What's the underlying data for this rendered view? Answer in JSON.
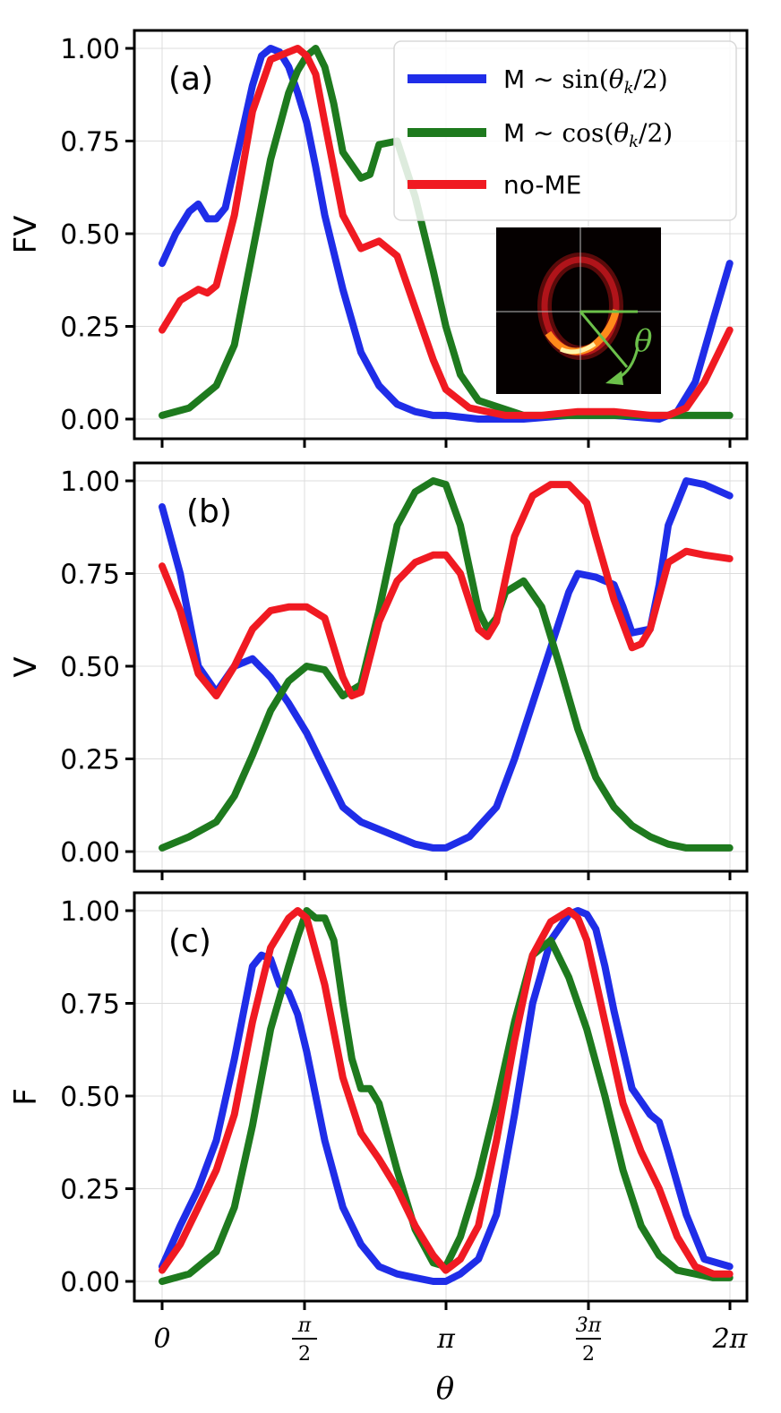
{
  "chart_data": [
    {
      "type": "line",
      "panel": "(a)",
      "ylabel": "FV",
      "xlabel": "",
      "ylim": [
        0,
        1
      ],
      "xlim": [
        0,
        6.2832
      ],
      "yticks": [
        "0.00",
        "0.25",
        "0.50",
        "0.75",
        "1.00"
      ],
      "grid": true,
      "legend": [
        "M ~ sin(θ_k/2)",
        "M ~ cos(θ_k/2)",
        "no-ME"
      ],
      "legend_position": "top-right",
      "inset": {
        "description": "ring intensity map",
        "theta_label": "θ"
      },
      "series": [
        {
          "name": "M ~ sin(θ_k/2)",
          "color": "#1f2de8",
          "x": [
            0,
            0.15,
            0.3,
            0.4,
            0.5,
            0.6,
            0.7,
            0.8,
            1.0,
            1.1,
            1.2,
            1.3,
            1.4,
            1.5,
            1.6,
            1.7,
            1.8,
            2.0,
            2.2,
            2.4,
            2.6,
            2.8,
            3.0,
            3.14,
            3.5,
            4.0,
            4.5,
            5.0,
            5.5,
            5.7,
            5.9,
            6.1,
            6.28
          ],
          "y": [
            0.42,
            0.5,
            0.56,
            0.58,
            0.54,
            0.54,
            0.57,
            0.68,
            0.9,
            0.98,
            1.0,
            0.99,
            0.95,
            0.88,
            0.8,
            0.68,
            0.55,
            0.35,
            0.18,
            0.09,
            0.04,
            0.02,
            0.01,
            0.01,
            0.0,
            0.0,
            0.01,
            0.01,
            0.0,
            0.02,
            0.1,
            0.27,
            0.42
          ]
        },
        {
          "name": "M ~ cos(θ_k/2)",
          "color": "#1e7a1e",
          "x": [
            0,
            0.3,
            0.6,
            0.8,
            1.0,
            1.2,
            1.4,
            1.5,
            1.6,
            1.7,
            1.8,
            1.9,
            2.0,
            2.2,
            2.3,
            2.4,
            2.6,
            2.8,
            3.0,
            3.14,
            3.3,
            3.5,
            4.0,
            4.5,
            5.0,
            5.5,
            6.0,
            6.28
          ],
          "y": [
            0.01,
            0.03,
            0.09,
            0.2,
            0.45,
            0.7,
            0.88,
            0.94,
            0.98,
            1.0,
            0.95,
            0.85,
            0.72,
            0.65,
            0.66,
            0.74,
            0.75,
            0.6,
            0.4,
            0.25,
            0.12,
            0.05,
            0.01,
            0.01,
            0.01,
            0.01,
            0.01,
            0.01
          ]
        },
        {
          "name": "no-ME",
          "color": "#f01a22",
          "x": [
            0,
            0.2,
            0.4,
            0.5,
            0.6,
            0.8,
            1.0,
            1.2,
            1.4,
            1.5,
            1.6,
            1.7,
            1.8,
            2.0,
            2.2,
            2.4,
            2.6,
            2.8,
            3.0,
            3.14,
            3.4,
            3.8,
            4.2,
            4.6,
            5.0,
            5.4,
            5.6,
            5.8,
            6.0,
            6.28
          ],
          "y": [
            0.24,
            0.32,
            0.35,
            0.34,
            0.36,
            0.55,
            0.83,
            0.97,
            0.99,
            1.0,
            0.98,
            0.93,
            0.8,
            0.55,
            0.46,
            0.48,
            0.44,
            0.3,
            0.16,
            0.08,
            0.03,
            0.01,
            0.01,
            0.02,
            0.02,
            0.01,
            0.01,
            0.03,
            0.1,
            0.24
          ]
        }
      ]
    },
    {
      "type": "line",
      "panel": "(b)",
      "ylabel": "V",
      "xlabel": "",
      "ylim": [
        0,
        1
      ],
      "xlim": [
        0,
        6.2832
      ],
      "yticks": [
        "0.00",
        "0.25",
        "0.50",
        "0.75",
        "1.00"
      ],
      "grid": true,
      "series": [
        {
          "name": "M ~ sin(θ_k/2)",
          "color": "#1f2de8",
          "x": [
            0,
            0.2,
            0.4,
            0.6,
            0.8,
            1.0,
            1.2,
            1.4,
            1.6,
            1.8,
            2.0,
            2.2,
            2.4,
            2.6,
            2.8,
            3.0,
            3.14,
            3.4,
            3.7,
            3.9,
            4.1,
            4.3,
            4.5,
            4.6,
            4.8,
            5.0,
            5.1,
            5.2,
            5.4,
            5.5,
            5.6,
            5.8,
            6.0,
            6.28
          ],
          "y": [
            0.93,
            0.75,
            0.5,
            0.43,
            0.5,
            0.52,
            0.47,
            0.4,
            0.32,
            0.22,
            0.12,
            0.08,
            0.06,
            0.04,
            0.02,
            0.01,
            0.01,
            0.04,
            0.12,
            0.25,
            0.4,
            0.55,
            0.7,
            0.75,
            0.74,
            0.72,
            0.66,
            0.59,
            0.6,
            0.72,
            0.88,
            1.0,
            0.99,
            0.96
          ]
        },
        {
          "name": "M ~ cos(θ_k/2)",
          "color": "#1e7a1e",
          "x": [
            0,
            0.3,
            0.6,
            0.8,
            1.0,
            1.2,
            1.4,
            1.6,
            1.8,
            2.0,
            2.2,
            2.4,
            2.6,
            2.8,
            3.0,
            3.14,
            3.3,
            3.5,
            3.6,
            3.7,
            3.8,
            4.0,
            4.2,
            4.4,
            4.6,
            4.8,
            5.0,
            5.2,
            5.4,
            5.6,
            5.8,
            6.0,
            6.28
          ],
          "y": [
            0.01,
            0.04,
            0.08,
            0.15,
            0.26,
            0.38,
            0.46,
            0.5,
            0.49,
            0.42,
            0.45,
            0.65,
            0.88,
            0.97,
            1.0,
            0.99,
            0.88,
            0.65,
            0.6,
            0.63,
            0.7,
            0.73,
            0.66,
            0.5,
            0.33,
            0.2,
            0.12,
            0.07,
            0.04,
            0.02,
            0.01,
            0.01,
            0.01
          ]
        },
        {
          "name": "no-ME",
          "color": "#f01a22",
          "x": [
            0,
            0.2,
            0.4,
            0.6,
            0.8,
            1.0,
            1.2,
            1.4,
            1.6,
            1.8,
            2.0,
            2.1,
            2.2,
            2.4,
            2.6,
            2.8,
            3.0,
            3.14,
            3.3,
            3.5,
            3.6,
            3.7,
            3.9,
            4.1,
            4.3,
            4.5,
            4.7,
            4.8,
            5.0,
            5.2,
            5.3,
            5.4,
            5.6,
            5.8,
            6.0,
            6.28
          ],
          "y": [
            0.77,
            0.65,
            0.48,
            0.42,
            0.5,
            0.6,
            0.65,
            0.66,
            0.66,
            0.63,
            0.47,
            0.42,
            0.43,
            0.62,
            0.73,
            0.78,
            0.8,
            0.8,
            0.75,
            0.6,
            0.58,
            0.62,
            0.85,
            0.96,
            0.99,
            0.99,
            0.94,
            0.85,
            0.68,
            0.55,
            0.56,
            0.6,
            0.78,
            0.81,
            0.8,
            0.79
          ]
        }
      ]
    },
    {
      "type": "line",
      "panel": "(c)",
      "ylabel": "F",
      "xlabel": "θ",
      "ylim": [
        0,
        1
      ],
      "xlim": [
        0,
        6.2832
      ],
      "yticks": [
        "0.00",
        "0.25",
        "0.50",
        "0.75",
        "1.00"
      ],
      "xticks": [
        {
          "value": 0,
          "label": "0"
        },
        {
          "value": 1.5708,
          "label": "π/2",
          "num": "π",
          "den": "2"
        },
        {
          "value": 3.1416,
          "label": "π"
        },
        {
          "value": 4.7124,
          "label": "3π/2",
          "num": "3π",
          "den": "2"
        },
        {
          "value": 6.2832,
          "label": "2π"
        }
      ],
      "grid": true,
      "series": [
        {
          "name": "M ~ sin(θ_k/2)",
          "color": "#1f2de8",
          "x": [
            0,
            0.2,
            0.4,
            0.6,
            0.8,
            1.0,
            1.1,
            1.2,
            1.3,
            1.4,
            1.5,
            1.6,
            1.8,
            2.0,
            2.2,
            2.4,
            2.6,
            2.8,
            3.0,
            3.14,
            3.3,
            3.5,
            3.7,
            3.9,
            4.1,
            4.3,
            4.5,
            4.6,
            4.7,
            4.8,
            4.9,
            5.0,
            5.2,
            5.4,
            5.5,
            5.6,
            5.8,
            6.0,
            6.28
          ],
          "y": [
            0.04,
            0.15,
            0.25,
            0.38,
            0.6,
            0.85,
            0.88,
            0.87,
            0.8,
            0.78,
            0.72,
            0.62,
            0.38,
            0.2,
            0.1,
            0.04,
            0.02,
            0.01,
            0.0,
            0.0,
            0.02,
            0.06,
            0.18,
            0.45,
            0.75,
            0.92,
            0.99,
            1.0,
            0.99,
            0.95,
            0.85,
            0.73,
            0.52,
            0.45,
            0.43,
            0.35,
            0.18,
            0.06,
            0.04
          ]
        },
        {
          "name": "M ~ cos(θ_k/2)",
          "color": "#1e7a1e",
          "x": [
            0,
            0.3,
            0.6,
            0.8,
            1.0,
            1.2,
            1.4,
            1.5,
            1.6,
            1.7,
            1.8,
            1.9,
            2.0,
            2.1,
            2.2,
            2.3,
            2.4,
            2.6,
            2.8,
            3.0,
            3.14,
            3.3,
            3.5,
            3.7,
            3.9,
            4.1,
            4.3,
            4.5,
            4.7,
            4.9,
            5.1,
            5.3,
            5.5,
            5.7,
            5.9,
            6.1,
            6.28
          ],
          "y": [
            0.0,
            0.02,
            0.08,
            0.2,
            0.42,
            0.68,
            0.85,
            0.93,
            1.0,
            0.98,
            0.98,
            0.92,
            0.75,
            0.6,
            0.52,
            0.52,
            0.48,
            0.3,
            0.14,
            0.05,
            0.04,
            0.12,
            0.28,
            0.48,
            0.7,
            0.88,
            0.92,
            0.82,
            0.68,
            0.5,
            0.3,
            0.15,
            0.07,
            0.03,
            0.02,
            0.01,
            0.01
          ]
        },
        {
          "name": "no-ME",
          "color": "#f01a22",
          "x": [
            0,
            0.2,
            0.4,
            0.6,
            0.8,
            1.0,
            1.2,
            1.4,
            1.5,
            1.6,
            1.8,
            2.0,
            2.2,
            2.4,
            2.6,
            2.8,
            3.0,
            3.14,
            3.3,
            3.5,
            3.7,
            3.9,
            4.1,
            4.3,
            4.5,
            4.6,
            4.7,
            4.9,
            5.1,
            5.3,
            5.5,
            5.7,
            5.9,
            6.1,
            6.28
          ],
          "y": [
            0.03,
            0.1,
            0.2,
            0.3,
            0.45,
            0.7,
            0.9,
            0.98,
            1.0,
            0.98,
            0.8,
            0.55,
            0.4,
            0.33,
            0.25,
            0.15,
            0.07,
            0.03,
            0.06,
            0.15,
            0.38,
            0.65,
            0.88,
            0.97,
            1.0,
            0.98,
            0.92,
            0.7,
            0.48,
            0.35,
            0.25,
            0.12,
            0.04,
            0.02,
            0.02
          ]
        }
      ]
    }
  ]
}
